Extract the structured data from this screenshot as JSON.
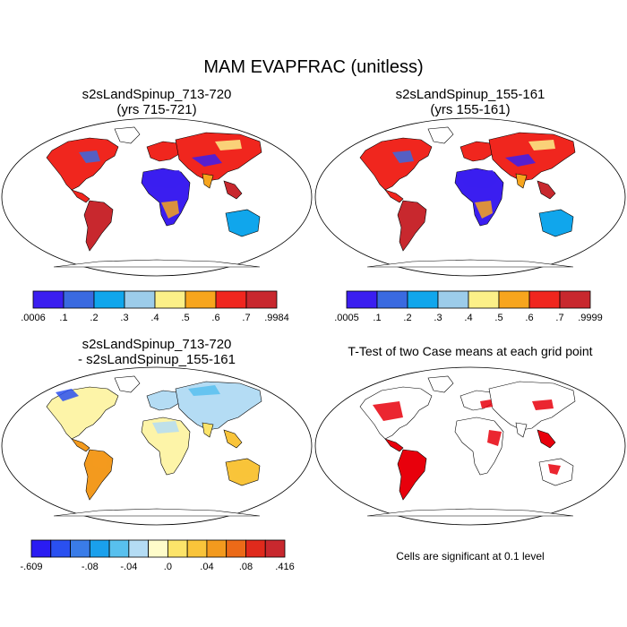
{
  "figure": {
    "title": "MAM EVAPFRAC (unitless)"
  },
  "panels": {
    "top_left": {
      "title_line1": "s2sLandSpinup_713-720",
      "title_line2": "(yrs 715-721)",
      "colorbar": {
        "colors": [
          "#3b1ef0",
          "#3a6ae0",
          "#10a6ec",
          "#9cccea",
          "#fcf088",
          "#f7a51d",
          "#f0261e",
          "#c8282e"
        ],
        "labels": [
          ".0006",
          ".1",
          ".2",
          ".3",
          ".4",
          ".5",
          ".6",
          ".7",
          ".9984"
        ]
      }
    },
    "top_right": {
      "title_line1": "s2sLandSpinup_155-161",
      "title_line2": "(yrs 155-161)",
      "colorbar": {
        "colors": [
          "#3b1ef0",
          "#3a6ae0",
          "#10a6ec",
          "#9cccea",
          "#fcf088",
          "#f7a51d",
          "#f0261e",
          "#c8282e"
        ],
        "labels": [
          ".0005",
          ".1",
          ".2",
          ".3",
          ".4",
          ".5",
          ".6",
          ".7",
          ".9999"
        ]
      }
    },
    "bottom_left": {
      "title_line1": "s2sLandSpinup_713-720",
      "title_line2": "- s2sLandSpinup_155-161",
      "colorbar": {
        "colors": [
          "#2a1cf2",
          "#2a50f0",
          "#3a7ce8",
          "#1aa0ec",
          "#58c0ee",
          "#b4dcf4",
          "#fefcca",
          "#fce46a",
          "#f9c43a",
          "#f39a1e",
          "#ec6a18",
          "#e02a1c",
          "#c8282e"
        ],
        "labels": [
          "-.609",
          "-.08",
          "-.04",
          ".0",
          ".04",
          ".08",
          ".416"
        ]
      }
    },
    "bottom_right": {
      "title": "T-Test of two Case means at each grid point",
      "note": "Cells are significant at 0.1 level",
      "highlight_color": "#e8000c"
    }
  },
  "map_colors": {
    "desert": "#3b2cf0",
    "humid": "#e8281e",
    "moderate": "#f7a51d",
    "cool": "#9cccea",
    "diff_positive": "#f39a1e",
    "diff_neutral": "#fdf4a8",
    "diff_negative": "#2a50f0"
  }
}
